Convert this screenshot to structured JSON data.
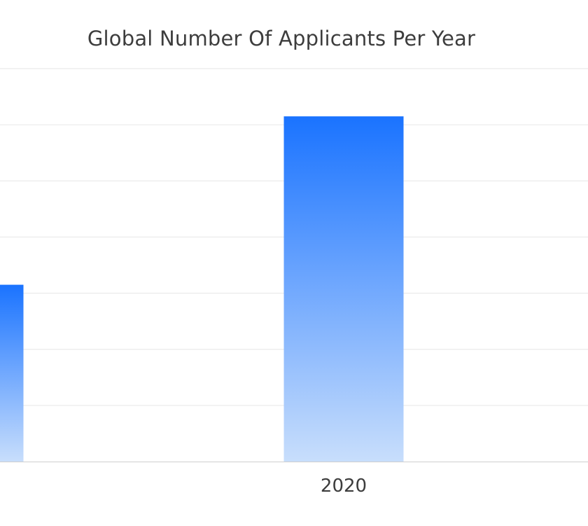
{
  "chart_data": {
    "type": "bar",
    "title": "Global Number Of Applicants Per Year",
    "categories": [
      "",
      "2020"
    ],
    "values": [
      3.15,
      6.15
    ],
    "ylim": [
      0,
      7
    ],
    "grid": true,
    "bar_color": "#1a73ff",
    "bar_color_light": "#c8defc",
    "grid_color": "#e6e6e6",
    "axis_color": "#cfcfcf"
  }
}
